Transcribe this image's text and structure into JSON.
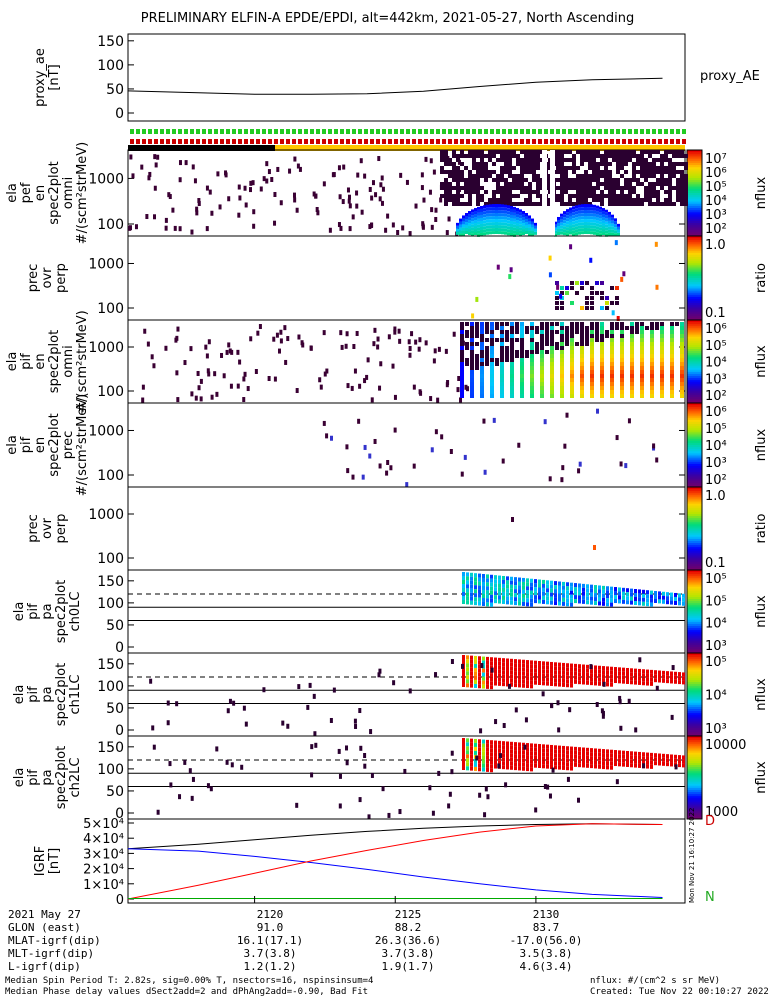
{
  "title": "PRELIMINARY ELFIN-A EPDE/EPDI, alt=442km, 2021-05-27, North Ascending",
  "chart_data": [
    {
      "type": "line",
      "panel": "proxy_ae",
      "ylabel": "proxy_ae [nT]",
      "legend": "proxy_AE",
      "y_ticks": [
        "150",
        "100",
        "50",
        "0"
      ],
      "ylim": [
        0,
        160
      ],
      "x": [
        2115.5,
        2118,
        2120,
        2122,
        2124,
        2126,
        2128,
        2130,
        2132,
        2134.5
      ],
      "values": [
        46,
        42,
        39,
        39,
        40,
        45,
        55,
        64,
        69,
        72
      ]
    },
    {
      "type": "heatmap",
      "panel": "epde_omni",
      "ylabel": [
        "ela",
        "pef",
        "en",
        "spec2plot",
        "omni",
        "#/(scm²strMeV)"
      ],
      "y_ticks": [
        "1000",
        "100"
      ],
      "cbar_label": "nflux",
      "cbar_ticks": [
        "10⁷",
        "10⁶",
        "10⁵",
        "10⁴",
        "10³",
        "10²"
      ],
      "log": true
    },
    {
      "type": "heatmap",
      "panel": "epde_prec_ratio",
      "ylabel": [
        "prec",
        "ovr",
        "perp"
      ],
      "y_ticks": [
        "1000",
        "100"
      ],
      "cbar_label": "ratio",
      "cbar_ticks": [
        "1.0",
        "0.1"
      ],
      "log": true
    },
    {
      "type": "heatmap",
      "panel": "epdi_omni",
      "ylabel": [
        "ela",
        "pif",
        "en",
        "spec2plot",
        "omni",
        "#/(scm²strMeV)"
      ],
      "y_ticks": [
        "1000",
        "100"
      ],
      "cbar_label": "nflux",
      "cbar_ticks": [
        "10⁶",
        "10⁵",
        "10⁴",
        "10³",
        "10²"
      ],
      "log": true
    },
    {
      "type": "heatmap",
      "panel": "epdi_prec",
      "ylabel": [
        "ela",
        "pif",
        "en",
        "spec2plot",
        "prec",
        "#/(scm²strMeV)"
      ],
      "y_ticks": [
        "1000",
        "100"
      ],
      "cbar_label": "nflux",
      "cbar_ticks": [
        "10⁶",
        "10⁵",
        "10⁴",
        "10³",
        "10²"
      ],
      "log": true
    },
    {
      "type": "heatmap",
      "panel": "epdi_prec_ratio",
      "ylabel": [
        "prec",
        "ovr",
        "perp"
      ],
      "y_ticks": [
        "1000",
        "100"
      ],
      "cbar_label": "ratio",
      "cbar_ticks": [
        "1.0",
        "0.1"
      ],
      "log": true
    },
    {
      "type": "heatmap",
      "panel": "pa_ch0",
      "ylabel": [
        "ela",
        "pif",
        "pa",
        "spec2plot",
        "ch0LC"
      ],
      "y_ticks": [
        "150",
        "100",
        "50",
        "0"
      ],
      "cbar_label": "nflux",
      "cbar_ticks": [
        "10⁵",
        "10⁵",
        "10⁴",
        "10³"
      ],
      "log": true
    },
    {
      "type": "heatmap",
      "panel": "pa_ch1",
      "ylabel": [
        "ela",
        "pif",
        "pa",
        "spec2plot",
        "ch1LC"
      ],
      "y_ticks": [
        "150",
        "100",
        "50",
        "0"
      ],
      "cbar_label": "nflux",
      "cbar_ticks": [
        "10⁵",
        "10⁴",
        "10³"
      ],
      "log": true
    },
    {
      "type": "heatmap",
      "panel": "pa_ch2",
      "ylabel": [
        "ela",
        "pif",
        "pa",
        "spec2plot",
        "ch2LC"
      ],
      "y_ticks": [
        "150",
        "100",
        "50",
        "0"
      ],
      "cbar_label": "nflux",
      "cbar_ticks": [
        "10000",
        "1000"
      ],
      "log": true
    },
    {
      "type": "line",
      "panel": "igrf",
      "ylabel": "IGRF [nT]",
      "y_ticks": [
        "5×10⁴",
        "4×10⁴",
        "3×10⁴",
        "2×10⁴",
        "1×10⁴",
        "0"
      ],
      "ylim": [
        0,
        50000
      ],
      "x": [
        2115.5,
        2118,
        2120,
        2122,
        2124,
        2126,
        2128,
        2130,
        2132,
        2134.5
      ],
      "series": [
        {
          "color": "#000000",
          "values": [
            33000,
            36000,
            39000,
            42000,
            44500,
            46500,
            48000,
            49000,
            49500,
            49000
          ]
        },
        {
          "color": "#0000ff",
          "values": [
            33000,
            31500,
            28000,
            24000,
            19500,
            14500,
            10000,
            6000,
            3000,
            1000
          ]
        },
        {
          "color": "#ff0000",
          "values": [
            0,
            9000,
            17000,
            25000,
            32000,
            38500,
            44000,
            48000,
            49500,
            49000
          ]
        },
        {
          "color": "#00aa00",
          "values": [
            300,
            300,
            300,
            300,
            300,
            300,
            300,
            300,
            300,
            300
          ]
        }
      ],
      "end_labels": [
        "D",
        "N"
      ]
    }
  ],
  "x_axis": {
    "rows": [
      {
        "label": "2021 May 27",
        "values": [
          "2120",
          "2125",
          "2130"
        ]
      },
      {
        "label": "GLON (east)",
        "values": [
          "91.0",
          "88.2",
          "83.7"
        ]
      },
      {
        "label": "MLAT-igrf(dip)",
        "values": [
          "16.1(17.1)",
          "26.3(36.6)",
          "-17.0(56.0)"
        ]
      },
      {
        "label": "MLT-igrf(dip)",
        "values": [
          "3.7(3.8)",
          "3.7(3.8)",
          "3.5(3.8)"
        ]
      },
      {
        "label": "L-igrf(dip)",
        "values": [
          "1.2(1.2)",
          "1.9(1.7)",
          "4.6(3.4)"
        ]
      }
    ]
  },
  "footer": {
    "line1_left": "Median Spin Period T: 2.82s, sig=0.00% T, nsectors=16, nspinsinsum=4",
    "line2_left": "Median Phase delay values dSect2add=2 and dPhAng2add=-0.90, Bad Fit",
    "line1_right": "nflux: #/(cm^2 s sr MeV)",
    "line2_right": "Created: Tue Nov 22 00:10:27 2022",
    "stamp": "Mon Nov 21 16:10:27 2022"
  }
}
